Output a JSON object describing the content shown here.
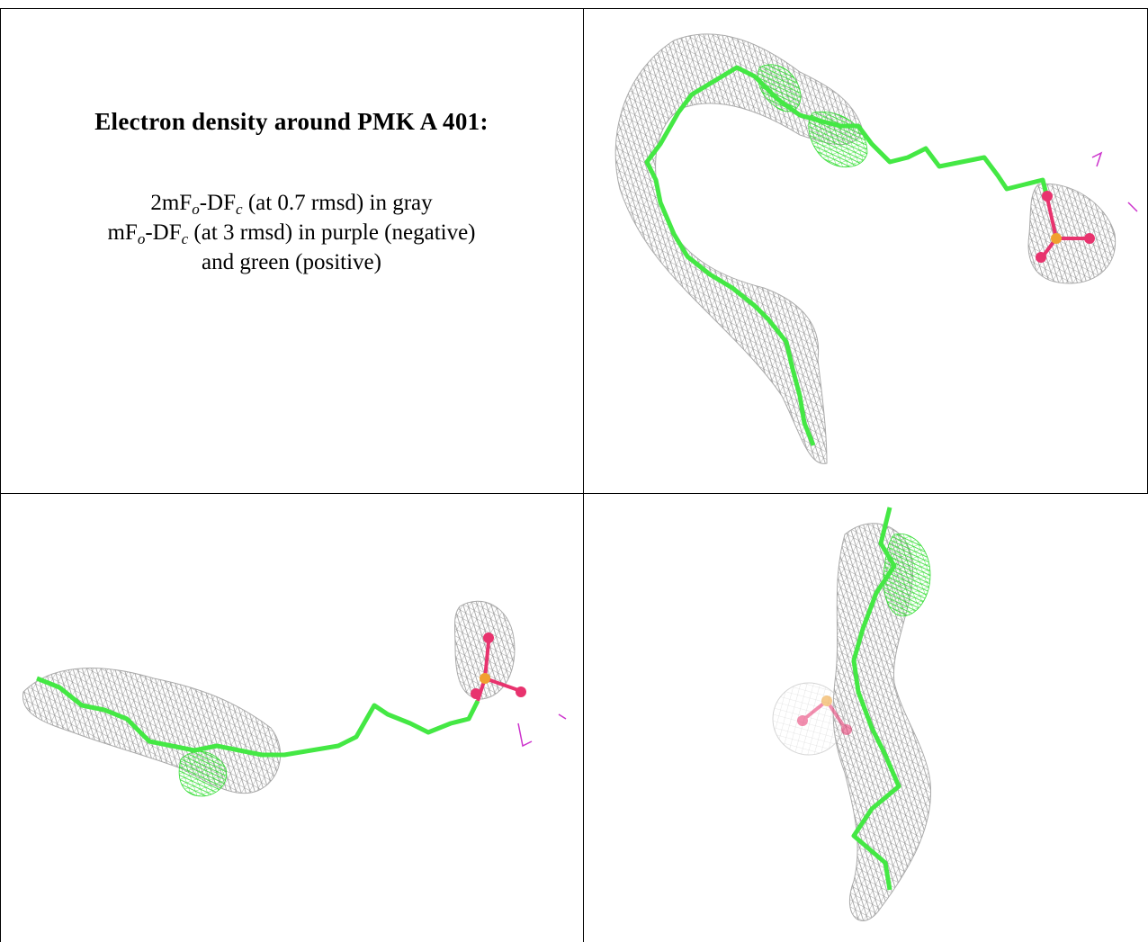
{
  "caption": {
    "title": "Electron density around PMK A 401:",
    "line1": {
      "pre": "2mF",
      "sub1": "o",
      "mid": "-DF",
      "sub2": "c",
      "post": " (at 0.7 rmsd) in gray"
    },
    "line2": {
      "pre": "mF",
      "sub1": "o",
      "mid": "-DF",
      "sub2": "c",
      "post": " (at 3 rmsd) in purple (negative)"
    },
    "line3": "and green (positive)"
  },
  "legend_colors": {
    "two_fo_fc_mesh": "#9a9a9a",
    "difference_negative": "#cc33cc",
    "difference_positive": "#44ee44",
    "ligand_carbon": "#44e844",
    "ligand_oxygen": "#e8336e",
    "ligand_phosphorus": "#f0a030"
  },
  "views": [
    "view-top-right",
    "view-bottom-left",
    "view-bottom-right"
  ]
}
